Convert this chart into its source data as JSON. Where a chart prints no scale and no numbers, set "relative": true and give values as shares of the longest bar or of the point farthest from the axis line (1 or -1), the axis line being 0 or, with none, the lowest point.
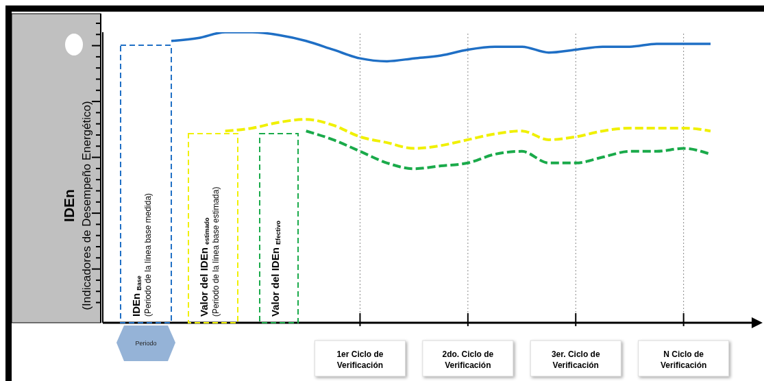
{
  "chart_data": {
    "type": "line",
    "relative": true,
    "ylabel": "IDEn\n(Indicadores de Desempeño Energético)",
    "marker": "none",
    "categories": [
      null,
      null,
      null,
      null,
      null,
      null,
      null,
      "1er Ciclo de Verificación",
      null,
      null,
      null,
      "2do. Ciclo de Verificación",
      null,
      null,
      null,
      "3er. Ciclo de Verificación",
      null,
      null,
      null,
      "N  Ciclo de Verificación",
      null
    ],
    "series": [
      {
        "color": "#1f6fc5",
        "line_style": "solid",
        "values": [
          0.97,
          0.98,
          1.0,
          1.0,
          0.99,
          0.97,
          0.94,
          0.91,
          0.9,
          0.91,
          0.92,
          0.94,
          0.95,
          0.95,
          0.93,
          0.94,
          0.95,
          0.95,
          0.96,
          0.96,
          0.96
        ]
      },
      {
        "color": "#f0f000",
        "line_style": "dashed",
        "values": [
          null,
          null,
          0.66,
          0.67,
          0.69,
          0.7,
          0.68,
          0.64,
          0.62,
          0.6,
          0.61,
          0.63,
          0.65,
          0.66,
          0.63,
          0.64,
          0.66,
          0.67,
          0.67,
          0.67,
          0.66
        ]
      },
      {
        "color": "#1aaa4a",
        "line_style": "dashed",
        "values": [
          null,
          null,
          null,
          null,
          null,
          0.66,
          0.63,
          0.59,
          0.55,
          0.53,
          0.54,
          0.55,
          0.58,
          0.59,
          0.55,
          0.55,
          0.57,
          0.59,
          0.59,
          0.6,
          0.58
        ]
      }
    ],
    "ref_lines": [
      {
        "axis": "x",
        "value": "1er Ciclo de Verificación",
        "color": "#888888",
        "line_style": "dotted"
      },
      {
        "axis": "x",
        "value": "2do. Ciclo de Verificación",
        "color": "#888888",
        "line_style": "dotted"
      },
      {
        "axis": "x",
        "value": "3er. Ciclo de Verificación",
        "color": "#888888",
        "line_style": "dotted"
      },
      {
        "axis": "x",
        "value": "N  Ciclo de Verificación",
        "color": "#888888",
        "line_style": "dotted"
      }
    ],
    "annotations": [
      "IDEn $_{Base}$",
      "(Periodo de la línea base medida)",
      "Valor del IDEn $_{estimado}$",
      "(Periodo de la línea base estimada)",
      "Valor del IDEn $_{Efectivo}$",
      "Periodo"
    ]
  }
}
